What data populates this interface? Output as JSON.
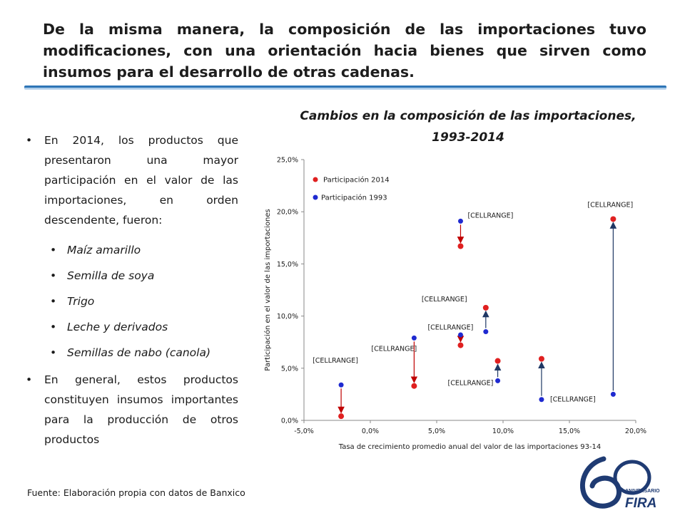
{
  "slide": {
    "heading": "De la misma manera, la composición de las importaciones tuvo modificaciones, con una orientación hacia bienes que sirven como insumos para el desarrollo de otras cadenas.",
    "chart_heading_1": "Cambios en la composición de las importaciones,",
    "chart_heading_2": "1993-2014",
    "bullet_1": "En 2014, los productos que presentaron una mayor participación en el valor de las importaciones, en orden descendente, fueron:",
    "sub_items": [
      "Maíz amarillo",
      "Semilla de soya",
      "Trigo",
      "Leche y derivados",
      "Semillas de nabo (canola)"
    ],
    "bullet_2": "En general, estos productos constituyen insumos importantes para la producción de otros productos",
    "bullet_glyph": "•",
    "source": "Fuente: Elaboración propia con datos de Banxico",
    "logo": {
      "text_1": "ANIVERSARIO",
      "text_2": "FIRA",
      "number": "60"
    }
  },
  "chart_data": {
    "type": "scatter",
    "xlabel": "Tasa de crecimiento promedio anual del valor de las importaciones 93-14",
    "ylabel": "Participación en el valor de las importaciones",
    "xlim": [
      -5,
      20
    ],
    "ylim": [
      0,
      25
    ],
    "x_ticks": [
      "-5,0%",
      "0,0%",
      "5,0%",
      "10,0%",
      "15,0%",
      "20,0%"
    ],
    "y_ticks": [
      "0,0%",
      "5,0%",
      "10,0%",
      "15,0%",
      "20,0%",
      "25,0%"
    ],
    "x_tick_values": [
      -5,
      0,
      5,
      10,
      15,
      20
    ],
    "y_tick_values": [
      0,
      5,
      10,
      15,
      20,
      25
    ],
    "legend_position": "top-left",
    "colors": {
      "2014": "#e02020",
      "1993": "#1f2ad0",
      "arrow_down": "#c00000",
      "arrow_up": "#1f3864",
      "axis": "#888888",
      "text": "#1a1a1a"
    },
    "series": [
      {
        "name": "Participación 2014",
        "color": "#e02020",
        "points": [
          [
            -2.2,
            0.4
          ],
          [
            3.3,
            3.3
          ],
          [
            6.8,
            16.7
          ],
          [
            6.8,
            7.2
          ],
          [
            8.7,
            10.8
          ],
          [
            9.6,
            5.7
          ],
          [
            12.9,
            5.9
          ],
          [
            18.3,
            19.3
          ]
        ]
      },
      {
        "name": "Participación 1993",
        "color": "#1f2ad0",
        "points": [
          [
            -2.2,
            3.4
          ],
          [
            3.3,
            7.9
          ],
          [
            6.8,
            19.1
          ],
          [
            6.8,
            8.2
          ],
          [
            8.7,
            8.5
          ],
          [
            9.6,
            3.8
          ],
          [
            12.9,
            2.0
          ],
          [
            18.3,
            2.5
          ]
        ]
      }
    ],
    "data_labels": [
      "[CELLRANGE]",
      "[CELLRANGE]",
      "[CELLRANGE]",
      "[CELLRANGE]",
      "[CELLRANGE]",
      "[CELLRANGE]",
      "[CELLRANGE]",
      "[CELLRANGE]"
    ]
  }
}
